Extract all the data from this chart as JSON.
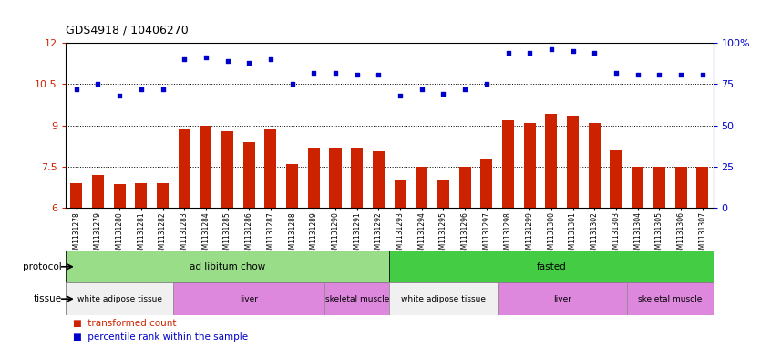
{
  "title": "GDS4918 / 10406270",
  "samples": [
    "GSM1131278",
    "GSM1131279",
    "GSM1131280",
    "GSM1131281",
    "GSM1131282",
    "GSM1131283",
    "GSM1131284",
    "GSM1131285",
    "GSM1131286",
    "GSM1131287",
    "GSM1131288",
    "GSM1131289",
    "GSM1131290",
    "GSM1131291",
    "GSM1131292",
    "GSM1131293",
    "GSM1131294",
    "GSM1131295",
    "GSM1131296",
    "GSM1131297",
    "GSM1131298",
    "GSM1131299",
    "GSM1131300",
    "GSM1131301",
    "GSM1131302",
    "GSM1131303",
    "GSM1131304",
    "GSM1131305",
    "GSM1131306",
    "GSM1131307"
  ],
  "bar_values": [
    6.9,
    7.2,
    6.85,
    6.9,
    6.9,
    8.85,
    9.0,
    8.8,
    8.4,
    8.85,
    7.6,
    8.2,
    8.2,
    8.2,
    8.05,
    7.0,
    7.5,
    7.0,
    7.5,
    7.8,
    9.2,
    9.1,
    9.4,
    9.35,
    9.1,
    8.1,
    7.5,
    7.5,
    7.5,
    7.5
  ],
  "dot_values_pct": [
    72,
    75,
    68,
    72,
    72,
    90,
    91,
    89,
    88,
    90,
    75,
    82,
    82,
    81,
    81,
    68,
    72,
    69,
    72,
    75,
    94,
    94,
    96,
    95,
    94,
    82,
    81,
    81,
    81,
    81
  ],
  "ylim_left": [
    6,
    12
  ],
  "ylim_right": [
    0,
    100
  ],
  "yticks_left": [
    6,
    7.5,
    9,
    10.5,
    12
  ],
  "yticks_right": [
    0,
    25,
    50,
    75,
    100
  ],
  "bar_color": "#cc2200",
  "dot_color": "#0000cc",
  "bar_width": 0.55,
  "protocol_groups": [
    {
      "label": "ad libitum chow",
      "start": 0,
      "end": 14,
      "color": "#99dd88"
    },
    {
      "label": "fasted",
      "start": 15,
      "end": 29,
      "color": "#44cc44"
    }
  ],
  "tissue_groups": [
    {
      "label": "white adipose tissue",
      "start": 0,
      "end": 4,
      "color": "#f0f0f0"
    },
    {
      "label": "liver",
      "start": 5,
      "end": 11,
      "color": "#dd88dd"
    },
    {
      "label": "skeletal muscle",
      "start": 12,
      "end": 14,
      "color": "#dd88dd"
    },
    {
      "label": "white adipose tissue",
      "start": 15,
      "end": 19,
      "color": "#f0f0f0"
    },
    {
      "label": "liver",
      "start": 20,
      "end": 25,
      "color": "#dd88dd"
    },
    {
      "label": "skeletal muscle",
      "start": 26,
      "end": 29,
      "color": "#dd88dd"
    }
  ],
  "background_color": "#ffffff",
  "tick_label_fontsize": 5.5,
  "title_fontsize": 9,
  "row_label_fontsize": 7.5,
  "group_label_fontsize": 7.5,
  "tissue_label_fontsize": 6.5,
  "legend_fontsize": 7.5,
  "ytick_fontsize": 8
}
